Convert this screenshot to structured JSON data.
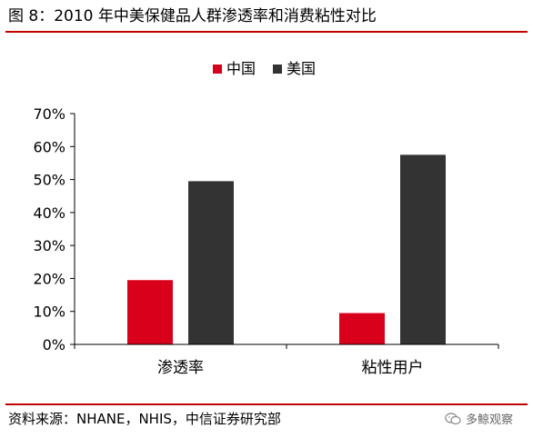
{
  "figure": {
    "title": "图 8：2010 年中美保健品人群渗透率和消费粘性对比",
    "source": "资料来源：NHANE，NHIS，中信证券研究部",
    "watermark": "多鲸观察",
    "watermark_icon": "wechat-icon"
  },
  "colors": {
    "china": "#d9001b",
    "usa": "#333333",
    "rule": "#c00000"
  },
  "chart_data": {
    "type": "bar",
    "categories": [
      "渗透率",
      "粘性用户"
    ],
    "series": [
      {
        "name": "中国",
        "values": [
          0.195,
          0.095
        ]
      },
      {
        "name": "美国",
        "values": [
          0.495,
          0.575
        ]
      }
    ],
    "ylim": [
      0,
      0.7
    ],
    "yticks": [
      "0%",
      "10%",
      "20%",
      "30%",
      "40%",
      "50%",
      "60%",
      "70%"
    ],
    "legend_position": "top-center",
    "grid": false
  }
}
